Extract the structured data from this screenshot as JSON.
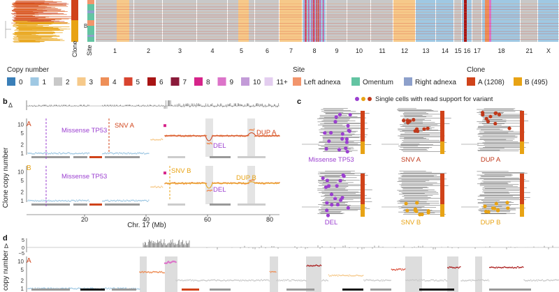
{
  "panel_a": {
    "clone_label": "Clone",
    "site_label": "Site",
    "clone_b_marker": "B",
    "chromosomes": [
      "1",
      "2",
      "3",
      "4",
      "5",
      "6",
      "7",
      "8",
      "9",
      "10",
      "11",
      "12",
      "13",
      "14",
      "15",
      "16",
      "17",
      "18",
      "21",
      "X"
    ]
  },
  "legends": {
    "copy_number_title": "Copy number",
    "copy_number": [
      {
        "label": "0",
        "color": "#3a7fb8"
      },
      {
        "label": "1",
        "color": "#9fc8e3"
      },
      {
        "label": "2",
        "color": "#c8c8c8"
      },
      {
        "label": "3",
        "color": "#f6c98a"
      },
      {
        "label": "4",
        "color": "#ee8f58"
      },
      {
        "label": "5",
        "color": "#d8442f"
      },
      {
        "label": "6",
        "color": "#a81414"
      },
      {
        "label": "7",
        "color": "#8a1a3a"
      },
      {
        "label": "8",
        "color": "#d6248a"
      },
      {
        "label": "9",
        "color": "#dc74c9"
      },
      {
        "label": "10",
        "color": "#c39bd8"
      },
      {
        "label": "11+",
        "color": "#e3cdef"
      }
    ],
    "site_title": "Site",
    "sites": [
      {
        "label": "Left adnexa",
        "color": "#f2956c"
      },
      {
        "label": "Omentum",
        "color": "#63c4a2"
      },
      {
        "label": "Right adnexa",
        "color": "#8da0cb"
      }
    ],
    "clone_title": "Clone",
    "clones": [
      {
        "label": "A (1208)",
        "color": "#d0431a"
      },
      {
        "label": "B (495)",
        "color": "#e8a314"
      }
    ]
  },
  "panel_b": {
    "label": "b",
    "delta_label": "Δ",
    "y_axis_label": "Clone copy number",
    "x_axis_label": "Chr. 17 (Mb)",
    "x_ticks": [
      "20",
      "40",
      "60",
      "80"
    ],
    "clone_a": {
      "tag": "A",
      "annotations": {
        "missense": "Missense TP53",
        "snv": "SNV A",
        "del": "DEL",
        "dup": "DUP A"
      },
      "y_ticks": [
        "10",
        "5",
        "2",
        "1"
      ]
    },
    "clone_b": {
      "tag": "B",
      "annotations": {
        "missense": "Missense TP53",
        "snv": "SNV B",
        "del": "DEL",
        "dup": "DUP B"
      },
      "y_ticks": [
        "10",
        "5",
        "2",
        "1"
      ]
    }
  },
  "panel_c": {
    "label": "c",
    "legend_text": "Single cells with read support for variant",
    "trees": [
      "Missense TP53",
      "SNV A",
      "DUP A",
      "DEL",
      "SNV B",
      "DUP B"
    ],
    "dot_colors": [
      "#9b3fd0",
      "#e8a314",
      "#c0391b"
    ]
  },
  "panel_d": {
    "label": "d",
    "delta_label": "Δ",
    "y_axis_label": "copy number",
    "clone_tag": "A",
    "delta_ticks": [
      "5",
      "0",
      "−5"
    ],
    "y_ticks": [
      "10",
      "5",
      "2",
      "1"
    ]
  }
}
